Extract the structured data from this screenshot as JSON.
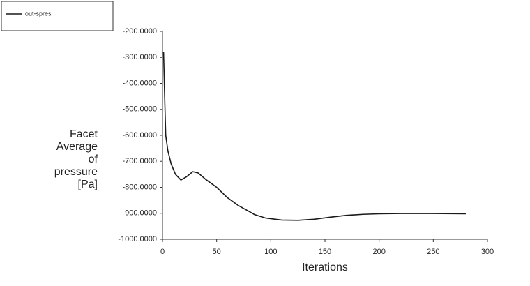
{
  "chart_data": {
    "type": "line",
    "ylabel_lines": [
      "Facet",
      "Average",
      "of",
      "pressure",
      "[Pa]"
    ],
    "xlabel": "Iterations",
    "series": [
      {
        "name": "out-spres",
        "color": "#1a1a1a",
        "x": [
          1,
          2,
          3,
          5,
          8,
          12,
          17,
          22,
          28,
          33,
          40,
          50,
          60,
          70,
          80,
          85,
          95,
          110,
          125,
          140,
          155,
          170,
          185,
          200,
          220,
          250,
          280
        ],
        "values": [
          -280,
          -450,
          -600,
          -660,
          -710,
          -750,
          -772,
          -760,
          -740,
          -745,
          -770,
          -800,
          -840,
          -870,
          -893,
          -905,
          -918,
          -926,
          -927,
          -923,
          -915,
          -908,
          -904,
          -902,
          -901,
          -901,
          -902
        ]
      }
    ],
    "xlim": [
      0,
      300
    ],
    "xticks": [
      0,
      50,
      100,
      150,
      200,
      250,
      300
    ],
    "ylim": [
      -1000,
      -200
    ],
    "yticks": [
      {
        "value": -1000,
        "label": "-1000.0000"
      },
      {
        "value": -900,
        "label": "-900.0000"
      },
      {
        "value": -800,
        "label": "-800.0000"
      },
      {
        "value": -700,
        "label": "-700.0000"
      },
      {
        "value": -600,
        "label": "-600.0000"
      },
      {
        "value": -500,
        "label": "-500.0000"
      },
      {
        "value": -400,
        "label": "-400.0000"
      },
      {
        "value": -300,
        "label": "-300.0000"
      },
      {
        "value": -200,
        "label": "-200.0000"
      }
    ]
  }
}
